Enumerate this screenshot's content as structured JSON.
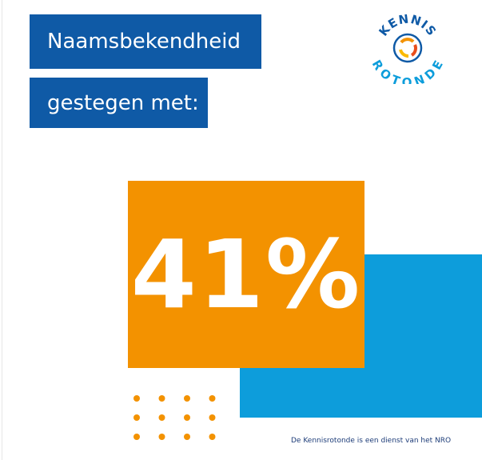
{
  "headline": {
    "line1": "Naamsbekendheid",
    "line2": "gestegen met:"
  },
  "figure": "41%",
  "logo": {
    "top": "KENNIS",
    "bottom": "ROTONDE"
  },
  "footer": "De Kennisrotonde is een dienst van het NRO"
}
